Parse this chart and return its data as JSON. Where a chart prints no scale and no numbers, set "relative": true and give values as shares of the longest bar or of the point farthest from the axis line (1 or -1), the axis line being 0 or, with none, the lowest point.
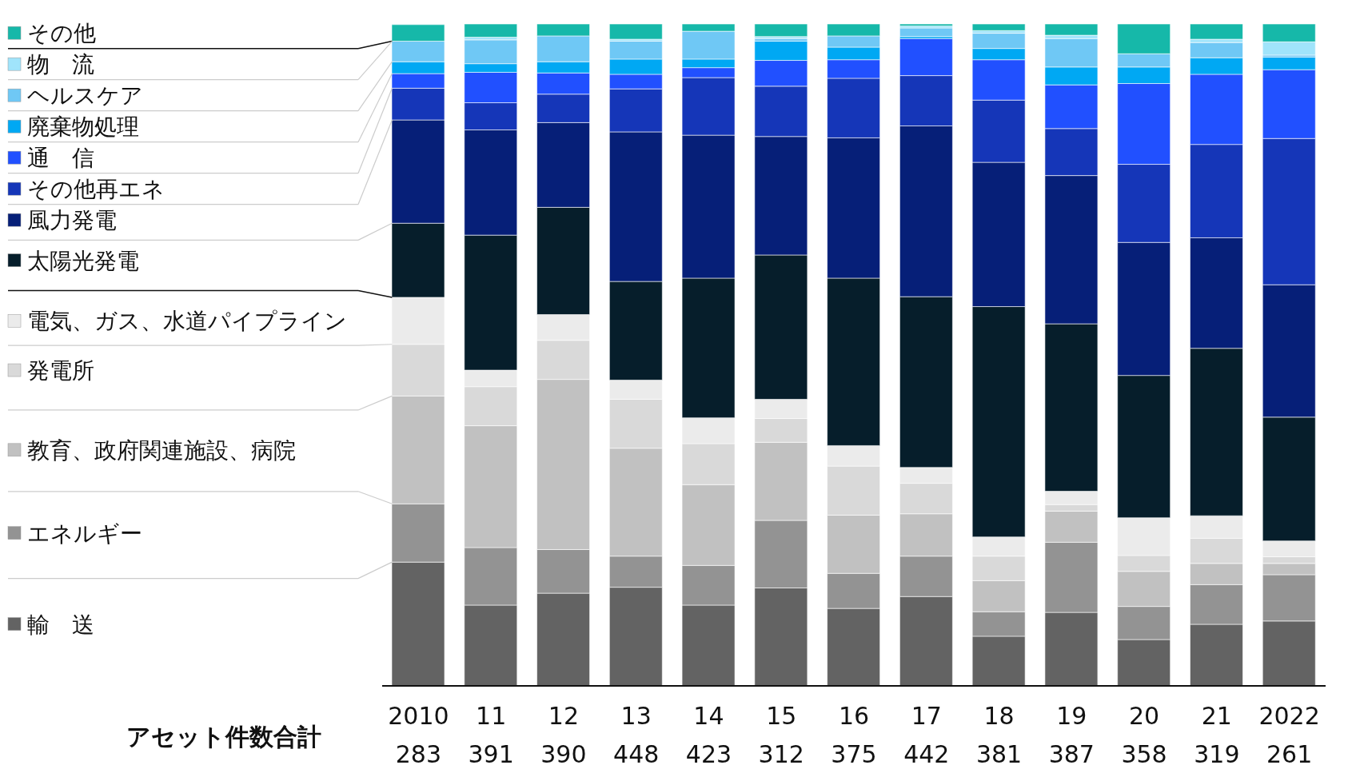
{
  "chart_data": {
    "type": "bar",
    "stacked": true,
    "relative": true,
    "legend": "left",
    "grid": false,
    "categories": [
      "2010",
      "11",
      "12",
      "13",
      "14",
      "15",
      "16",
      "17",
      "18",
      "19",
      "20",
      "21",
      "2022"
    ],
    "annotations": [
      "アセット件数合計",
      "283",
      "391",
      "390",
      "448",
      "423",
      "312",
      "375",
      "442",
      "381",
      "387",
      "358",
      "319",
      "261"
    ],
    "series": [
      {
        "name": "輸　送",
        "color": "#636363",
        "values": [
          0.187,
          0.122,
          0.14,
          0.149,
          0.122,
          0.148,
          0.117,
          0.135,
          0.075,
          0.111,
          0.07,
          0.093,
          0.098
        ]
      },
      {
        "name": "エネルギー",
        "color": "#939393",
        "values": [
          0.088,
          0.087,
          0.066,
          0.047,
          0.06,
          0.102,
          0.053,
          0.061,
          0.037,
          0.106,
          0.05,
          0.06,
          0.07
        ]
      },
      {
        "name": "教育、政府関連施設、病院",
        "color": "#c1c1c1",
        "values": [
          0.163,
          0.184,
          0.257,
          0.163,
          0.122,
          0.118,
          0.088,
          0.064,
          0.047,
          0.047,
          0.053,
          0.032,
          0.017
        ]
      },
      {
        "name": "発電所",
        "color": "#d9d9d9",
        "values": [
          0.078,
          0.059,
          0.059,
          0.074,
          0.062,
          0.036,
          0.074,
          0.046,
          0.037,
          0.01,
          0.024,
          0.038,
          0.01
        ]
      },
      {
        "name": "電気、ガス、水道パイプライン",
        "color": "#ebebeb",
        "values": [
          0.071,
          0.025,
          0.039,
          0.029,
          0.039,
          0.029,
          0.031,
          0.024,
          0.029,
          0.02,
          0.057,
          0.034,
          0.024
        ]
      },
      {
        "name": "太陽光発電",
        "color": "#061e2b",
        "values": [
          0.112,
          0.204,
          0.162,
          0.149,
          0.211,
          0.218,
          0.253,
          0.258,
          0.348,
          0.253,
          0.215,
          0.253,
          0.187
        ]
      },
      {
        "name": "風力発電",
        "color": "#061f78",
        "values": [
          0.156,
          0.159,
          0.128,
          0.226,
          0.216,
          0.179,
          0.212,
          0.258,
          0.218,
          0.224,
          0.201,
          0.167,
          0.2
        ]
      },
      {
        "name": "その他再エネ",
        "color": "#1536b8",
        "values": [
          0.048,
          0.041,
          0.043,
          0.065,
          0.087,
          0.076,
          0.09,
          0.076,
          0.094,
          0.071,
          0.118,
          0.141,
          0.221
        ]
      },
      {
        "name": "通　信",
        "color": "#2150ff",
        "values": [
          0.022,
          0.046,
          0.032,
          0.022,
          0.015,
          0.039,
          0.028,
          0.056,
          0.061,
          0.066,
          0.122,
          0.106,
          0.104
        ]
      },
      {
        "name": "廃棄物処理",
        "color": "#00a8f3",
        "values": [
          0.018,
          0.013,
          0.017,
          0.023,
          0.013,
          0.029,
          0.019,
          0.003,
          0.017,
          0.027,
          0.025,
          0.025,
          0.019
        ]
      },
      {
        "name": "ヘルスケア",
        "color": "#6fc8f5",
        "values": [
          0.031,
          0.036,
          0.039,
          0.027,
          0.042,
          0.004,
          0.017,
          0.013,
          0.023,
          0.043,
          0.02,
          0.023,
          0.003
        ]
      },
      {
        "name": "物　流",
        "color": "#a0e4fb",
        "values": [
          null,
          0.004,
          0,
          0.003,
          0,
          0.003,
          0,
          0.003,
          0.004,
          0.005,
          0,
          0.005,
          0.02
        ]
      },
      {
        "name": "その他",
        "color": "#16b8a9",
        "values": [
          0.025,
          0.02,
          0.018,
          0.023,
          0.011,
          0.019,
          0.018,
          0.003,
          0.01,
          0.017,
          0.045,
          0.023,
          0.027
        ]
      }
    ]
  }
}
